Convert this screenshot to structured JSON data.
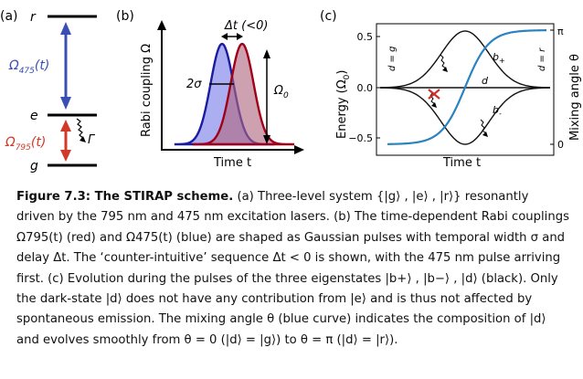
{
  "panel_a": {
    "label": "(a)",
    "level_r": "r",
    "level_e": "e",
    "level_g": "g",
    "coupling_475": "Ω",
    "coupling_475_sub": "475",
    "coupling_475_arg": "(t)",
    "coupling_795": "Ω",
    "coupling_795_sub": "795",
    "coupling_795_arg": "(t)",
    "decay": "Γ",
    "colors": {
      "blue": "#3a4fb4",
      "red": "#d03a2a"
    }
  },
  "panel_b": {
    "label": "(b)",
    "ylabel": "Rabi coupling Ω",
    "xlabel": "Time t",
    "delay": "Δt (<0)",
    "width": "2σ",
    "amplitude": "Ω",
    "amplitude_sub": "0",
    "colors": {
      "blue": "#1c1ca0",
      "blue_fill": "#9ea0f0",
      "red": "#a00018",
      "red_fill": "#c88aa0"
    }
  },
  "panel_c": {
    "label": "(c)",
    "ylabel_left": "Energy (Ω",
    "ylabel_left_sub": "0",
    "ylabel_left_end": ")",
    "ylabel_right": "Mixing angle θ",
    "xlabel": "Time t",
    "y_ticks": [
      "0.5",
      "0.0",
      "−0.5"
    ],
    "right_ticks": [
      "π",
      "0"
    ],
    "state_plus": "b",
    "state_plus_sub": "+",
    "state_minus": "b",
    "state_minus_sub": "-",
    "state_dark": "d",
    "left_annot": "d = g",
    "right_annot": "d = r",
    "colors": {
      "mixing": "#2a82c0",
      "curves": "#111111",
      "cross": "#d0302a"
    }
  },
  "caption": {
    "label": "Figure 7.3: The STIRAP scheme.",
    "lines": [
      " (a) Three-level system {|g⟩ , |e⟩ , |r⟩} resonantly",
      "driven by the 795 nm and 475 nm excitation lasers. (b) The time-dependent Rabi couplings",
      "Ω795(t) (red) and Ω475(t) (blue) are shaped as Gaussian pulses with temporal width σ and",
      "delay Δt. The ‘counter-intuitive’ sequence Δt < 0 is shown, with the 475 nm pulse arriving",
      "first. (c) Evolution during the pulses of the three eigenstates |b+⟩ , |b−⟩ , |d⟩ (black). Only",
      "the dark-state |d⟩ does not have any contribution from |e⟩ and is thus not affected by",
      "spontaneous emission. The mixing angle θ (blue curve) indicates the composition of |d⟩",
      "and evolves smoothly from θ = 0 (|d⟩ = |g⟩) to θ = π (|d⟩ = |r⟩)."
    ]
  }
}
